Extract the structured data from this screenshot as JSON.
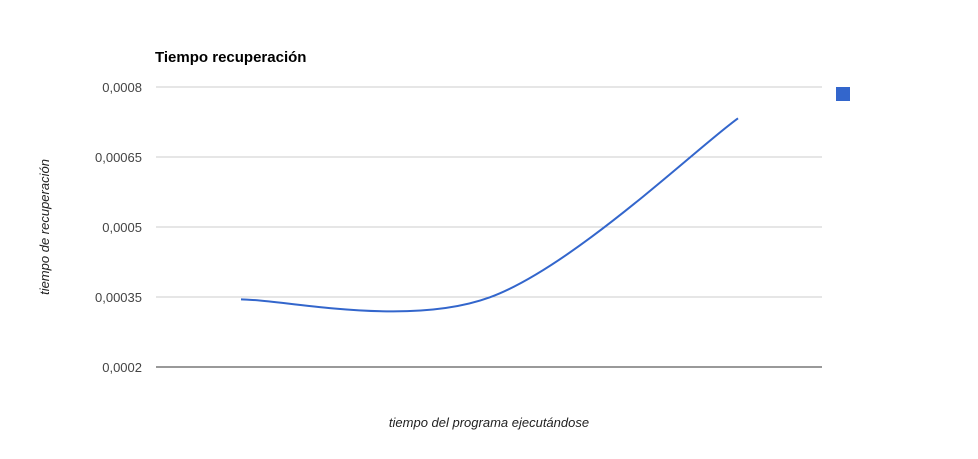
{
  "chart_data": {
    "type": "line",
    "title": "Tiempo recuperación",
    "xlabel": "tiempo del programa ejecutándose",
    "ylabel": "tiempo de recuperación",
    "ylim": [
      0.0002,
      0.0008
    ],
    "y_ticks": [
      {
        "value": 0.0002,
        "label": "0,0002"
      },
      {
        "value": 0.00035,
        "label": "0,00035"
      },
      {
        "value": 0.0005,
        "label": "0,0005"
      },
      {
        "value": 0.00065,
        "label": "0,00065"
      },
      {
        "value": 0.0008,
        "label": "0,0008"
      }
    ],
    "grid": true,
    "legend_position": "top-right",
    "series": [
      {
        "color": "#3366cc",
        "x": [
          1,
          2,
          3
        ],
        "y": [
          0.000345,
          0.000349,
          0.000733
        ]
      }
    ]
  }
}
